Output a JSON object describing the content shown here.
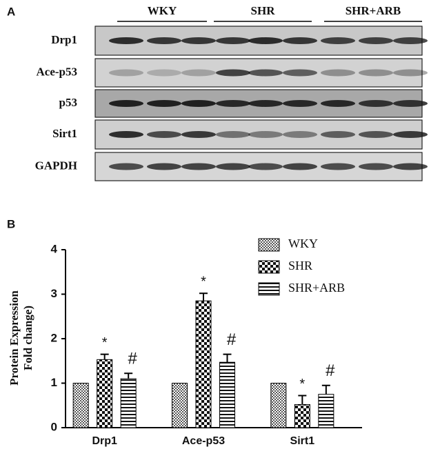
{
  "panel_a": {
    "label": "A",
    "groups": [
      "WKY",
      "SHR",
      "SHR+ARB"
    ],
    "rows": [
      "Drp1",
      "Ace-p53",
      "p53",
      "Sirt1",
      "GAPDH"
    ]
  },
  "chart_data": {
    "type": "bar",
    "panel_label": "B",
    "ylabel": [
      "Protein Expression",
      "Fold change)"
    ],
    "categories": [
      "Drp1",
      "Ace-p53",
      "Sirt1"
    ],
    "series": [
      {
        "name": "WKY",
        "color": "#000000",
        "pattern": "small-check",
        "values": [
          1,
          1,
          1
        ]
      },
      {
        "name": "SHR",
        "color": "#000000",
        "pattern": "large-check",
        "values": [
          1.53,
          2.85,
          0.52
        ],
        "errors": [
          0.12,
          0.17,
          0.2
        ],
        "annotations": [
          "*",
          "*",
          "*"
        ]
      },
      {
        "name": "SHR+ARB",
        "color": "#000000",
        "pattern": "stripes",
        "values": [
          1.1,
          1.47,
          0.75
        ],
        "errors": [
          0.12,
          0.18,
          0.2
        ],
        "annotations": [
          "#",
          "#",
          "#"
        ]
      }
    ],
    "ylim": [
      0,
      4
    ],
    "yticks": [
      0,
      1,
      2,
      3,
      4
    ],
    "legend": "top-right"
  }
}
